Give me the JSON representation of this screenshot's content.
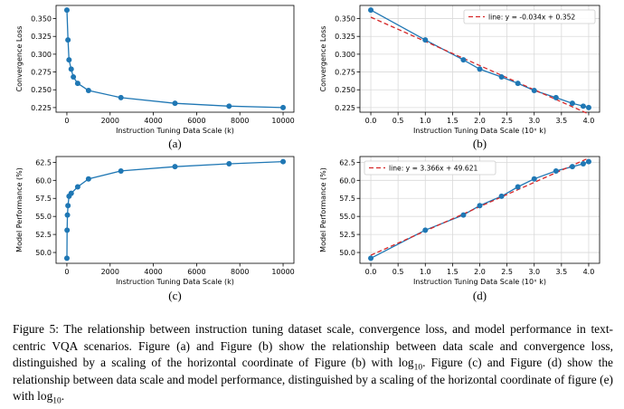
{
  "chart_data": [
    {
      "id": "a",
      "type": "line",
      "panel_label": "(a)",
      "xlabel": "Instruction Tuning Data Scale (k)",
      "ylabel": "Convergence Loss",
      "x": [
        1,
        50,
        100,
        200,
        300,
        500,
        1000,
        2500,
        5000,
        7500,
        10000
      ],
      "y": [
        0.362,
        0.32,
        0.292,
        0.279,
        0.268,
        0.259,
        0.249,
        0.239,
        0.231,
        0.227,
        0.225
      ],
      "xlim": [
        -500,
        10500
      ],
      "ylim": [
        0.2185,
        0.3685
      ],
      "xticks": [
        0,
        2000,
        4000,
        6000,
        8000,
        10000
      ],
      "xticklabels": [
        "0",
        "2000",
        "4000",
        "6000",
        "8000",
        "10000"
      ],
      "yticks": [
        0.225,
        0.25,
        0.275,
        0.3,
        0.325,
        0.35
      ],
      "yticklabels": [
        "0.225",
        "0.250",
        "0.275",
        "0.300",
        "0.325",
        "0.350"
      ],
      "grid": false,
      "color": "#1f77b4"
    },
    {
      "id": "b",
      "type": "line",
      "panel_label": "(b)",
      "xlabel": "Instruction Tuning Data Scale (10ˣ k)",
      "ylabel": "Convergence Loss",
      "x": [
        0,
        1,
        1.7,
        2,
        2.4,
        2.7,
        3,
        3.4,
        3.7,
        3.9,
        4
      ],
      "y": [
        0.362,
        0.32,
        0.292,
        0.279,
        0.268,
        0.259,
        0.249,
        0.239,
        0.231,
        0.227,
        0.225
      ],
      "fit": {
        "slope": -0.034,
        "intercept": 0.352,
        "label": "line: y = -0.034x + 0.352",
        "color": "#d62728",
        "style": "dashed"
      },
      "legend_position": "top-right",
      "xlim": [
        -0.2,
        4.2
      ],
      "ylim": [
        0.2185,
        0.3685
      ],
      "xticks": [
        0,
        0.5,
        1,
        1.5,
        2,
        2.5,
        3,
        3.5,
        4
      ],
      "xticklabels": [
        "0.0",
        "0.5",
        "1.0",
        "1.5",
        "2.0",
        "2.5",
        "3.0",
        "3.5",
        "4.0"
      ],
      "yticks": [
        0.225,
        0.25,
        0.275,
        0.3,
        0.325,
        0.35
      ],
      "yticklabels": [
        "0.225",
        "0.250",
        "0.275",
        "0.300",
        "0.325",
        "0.350"
      ],
      "grid": true,
      "color": "#1f77b4"
    },
    {
      "id": "c",
      "type": "line",
      "panel_label": "(c)",
      "xlabel": "Instruction Tuning Data Scale (k)",
      "ylabel": "Model Performance (%)",
      "x": [
        1,
        10,
        25,
        50,
        100,
        200,
        500,
        1000,
        2500,
        5000,
        7500,
        10000
      ],
      "y": [
        49.2,
        53.1,
        55.2,
        56.5,
        57.8,
        58.2,
        59.1,
        60.2,
        61.3,
        61.9,
        62.3,
        62.6
      ],
      "xlim": [
        -500,
        10500
      ],
      "ylim": [
        48.5,
        63.3
      ],
      "xticks": [
        0,
        2000,
        4000,
        6000,
        8000,
        10000
      ],
      "xticklabels": [
        "0",
        "2000",
        "4000",
        "6000",
        "8000",
        "10000"
      ],
      "yticks": [
        50,
        52.5,
        55,
        57.5,
        60,
        62.5
      ],
      "yticklabels": [
        "50.0",
        "52.5",
        "55.0",
        "57.5",
        "60.0",
        "62.5"
      ],
      "grid": false,
      "color": "#1f77b4"
    },
    {
      "id": "d",
      "type": "line",
      "panel_label": "(d)",
      "xlabel": "Instruction Tuning Data Scale (10ˣ k)",
      "ylabel": "Model Performance (%)",
      "x": [
        0,
        1,
        1.7,
        2,
        2.4,
        2.7,
        3,
        3.4,
        3.7,
        3.9,
        4
      ],
      "y": [
        49.2,
        53.1,
        55.2,
        56.5,
        57.8,
        59.1,
        60.2,
        61.3,
        61.9,
        62.3,
        62.6
      ],
      "fit": {
        "slope": 3.366,
        "intercept": 49.621,
        "label": "line: y = 3.366x + 49.621",
        "color": "#d62728",
        "style": "dashed"
      },
      "legend_position": "top-left",
      "xlim": [
        -0.2,
        4.2
      ],
      "ylim": [
        48.5,
        63.3
      ],
      "xticks": [
        0,
        0.5,
        1,
        1.5,
        2,
        2.5,
        3,
        3.5,
        4
      ],
      "xticklabels": [
        "0.0",
        "0.5",
        "1.0",
        "1.5",
        "2.0",
        "2.5",
        "3.0",
        "3.5",
        "4.0"
      ],
      "yticks": [
        50,
        52.5,
        55,
        57.5,
        60,
        62.5
      ],
      "yticklabels": [
        "50.0",
        "52.5",
        "55.0",
        "57.5",
        "60.0",
        "62.5"
      ],
      "grid": true,
      "color": "#1f77b4"
    }
  ],
  "caption": {
    "lead": "Figure 5: The relationship between instruction tuning dataset scale, convergence loss, and model performance in text-centric VQA scenarios. Figure (a) and Figure (b) show the relationship between data scale and convergence loss, distinguished by a scaling of the horizontal coordinate of Figure (b) with log",
    "sub1": "10",
    "middle": ". Figure (c) and Figure (d) show the relationship between data scale and model performance, distinguished by a scaling of the horizontal coordinate of figure (e) with log",
    "sub2": "10",
    "end": "."
  }
}
